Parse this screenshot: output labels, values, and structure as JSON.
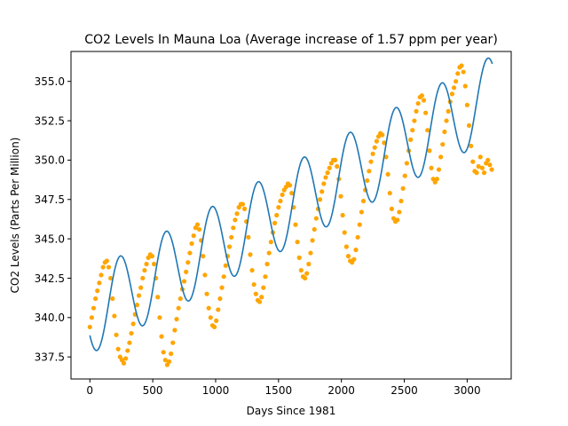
{
  "chart_data": {
    "type": "scatter",
    "title": "CO2 Levels In Mauna Loa (Average increase of 1.57 ppm per year)",
    "xlabel": "Days Since 1981",
    "ylabel": "CO2 Levels (Parts Per Million)",
    "xlim": [
      -150,
      3350
    ],
    "ylim": [
      336.1,
      356.9
    ],
    "xticks": [
      0,
      500,
      1000,
      1500,
      2000,
      2500,
      3000
    ],
    "xtick_labels": [
      "0",
      "500",
      "1000",
      "1500",
      "2000",
      "2500",
      "3000"
    ],
    "yticks": [
      337.5,
      340.0,
      342.5,
      345.0,
      347.5,
      350.0,
      352.5,
      355.0
    ],
    "ytick_labels": [
      "337.5",
      "340.0",
      "342.5",
      "345.0",
      "347.5",
      "350.0",
      "352.5",
      "355.0"
    ],
    "grid": false,
    "colors": {
      "points": "#ffa500",
      "fit": "#1f77b4"
    },
    "series": [
      {
        "kind": "scatter",
        "points": [
          [
            0,
            339.4
          ],
          [
            15,
            340.0
          ],
          [
            30,
            340.6
          ],
          [
            45,
            341.2
          ],
          [
            60,
            341.7
          ],
          [
            75,
            342.2
          ],
          [
            90,
            342.7
          ],
          [
            105,
            343.2
          ],
          [
            120,
            343.5
          ],
          [
            135,
            343.6
          ],
          [
            150,
            343.2
          ],
          [
            165,
            342.5
          ],
          [
            180,
            341.2
          ],
          [
            195,
            340.1
          ],
          [
            210,
            338.9
          ],
          [
            225,
            338.0
          ],
          [
            240,
            337.5
          ],
          [
            255,
            337.3
          ],
          [
            270,
            337.1
          ],
          [
            285,
            337.4
          ],
          [
            300,
            337.9
          ],
          [
            315,
            338.4
          ],
          [
            330,
            339.0
          ],
          [
            345,
            339.6
          ],
          [
            360,
            340.2
          ],
          [
            375,
            340.8
          ],
          [
            390,
            341.4
          ],
          [
            405,
            341.9
          ],
          [
            420,
            342.5
          ],
          [
            435,
            343.0
          ],
          [
            450,
            343.4
          ],
          [
            465,
            343.8
          ],
          [
            480,
            344.0
          ],
          [
            495,
            343.9
          ],
          [
            510,
            343.4
          ],
          [
            525,
            342.5
          ],
          [
            540,
            341.3
          ],
          [
            555,
            340.0
          ],
          [
            570,
            338.8
          ],
          [
            585,
            337.8
          ],
          [
            600,
            337.3
          ],
          [
            615,
            337.0
          ],
          [
            630,
            337.2
          ],
          [
            645,
            337.7
          ],
          [
            660,
            338.4
          ],
          [
            675,
            339.2
          ],
          [
            690,
            339.9
          ],
          [
            705,
            340.6
          ],
          [
            720,
            341.2
          ],
          [
            735,
            341.8
          ],
          [
            750,
            342.3
          ],
          [
            765,
            342.9
          ],
          [
            780,
            343.5
          ],
          [
            795,
            344.1
          ],
          [
            810,
            344.7
          ],
          [
            825,
            345.2
          ],
          [
            840,
            345.7
          ],
          [
            855,
            345.9
          ],
          [
            870,
            345.6
          ],
          [
            885,
            344.9
          ],
          [
            900,
            343.9
          ],
          [
            915,
            342.7
          ],
          [
            930,
            341.5
          ],
          [
            945,
            340.6
          ],
          [
            960,
            340.0
          ],
          [
            975,
            339.5
          ],
          [
            990,
            339.4
          ],
          [
            1005,
            339.8
          ],
          [
            1020,
            340.5
          ],
          [
            1035,
            341.2
          ],
          [
            1050,
            341.9
          ],
          [
            1065,
            342.6
          ],
          [
            1080,
            343.3
          ],
          [
            1095,
            343.9
          ],
          [
            1110,
            344.5
          ],
          [
            1125,
            345.1
          ],
          [
            1140,
            345.7
          ],
          [
            1155,
            346.2
          ],
          [
            1170,
            346.6
          ],
          [
            1185,
            347.0
          ],
          [
            1200,
            347.2
          ],
          [
            1215,
            347.2
          ],
          [
            1230,
            346.9
          ],
          [
            1245,
            346.1
          ],
          [
            1260,
            345.1
          ],
          [
            1275,
            344.0
          ],
          [
            1290,
            343.0
          ],
          [
            1305,
            342.1
          ],
          [
            1320,
            341.5
          ],
          [
            1335,
            341.1
          ],
          [
            1350,
            341.0
          ],
          [
            1365,
            341.3
          ],
          [
            1380,
            341.9
          ],
          [
            1395,
            342.6
          ],
          [
            1410,
            343.4
          ],
          [
            1425,
            344.1
          ],
          [
            1440,
            344.8
          ],
          [
            1455,
            345.4
          ],
          [
            1470,
            346.0
          ],
          [
            1485,
            346.5
          ],
          [
            1500,
            347.0
          ],
          [
            1515,
            347.4
          ],
          [
            1530,
            347.8
          ],
          [
            1545,
            348.1
          ],
          [
            1560,
            348.3
          ],
          [
            1575,
            348.5
          ],
          [
            1590,
            348.4
          ],
          [
            1605,
            347.9
          ],
          [
            1620,
            347.0
          ],
          [
            1635,
            345.9
          ],
          [
            1650,
            344.8
          ],
          [
            1665,
            343.8
          ],
          [
            1680,
            343.0
          ],
          [
            1695,
            342.6
          ],
          [
            1710,
            342.5
          ],
          [
            1725,
            342.8
          ],
          [
            1740,
            343.4
          ],
          [
            1755,
            344.1
          ],
          [
            1770,
            344.9
          ],
          [
            1785,
            345.6
          ],
          [
            1800,
            346.3
          ],
          [
            1815,
            346.9
          ],
          [
            1830,
            347.5
          ],
          [
            1845,
            348.0
          ],
          [
            1860,
            348.5
          ],
          [
            1875,
            348.9
          ],
          [
            1890,
            349.2
          ],
          [
            1905,
            349.5
          ],
          [
            1920,
            349.8
          ],
          [
            1935,
            350.0
          ],
          [
            1950,
            350.0
          ],
          [
            1965,
            349.6
          ],
          [
            1980,
            348.8
          ],
          [
            1995,
            347.7
          ],
          [
            2010,
            346.5
          ],
          [
            2025,
            345.4
          ],
          [
            2040,
            344.5
          ],
          [
            2055,
            343.9
          ],
          [
            2070,
            343.6
          ],
          [
            2085,
            343.5
          ],
          [
            2100,
            343.7
          ],
          [
            2115,
            344.3
          ],
          [
            2130,
            345.1
          ],
          [
            2145,
            345.9
          ],
          [
            2160,
            346.7
          ],
          [
            2175,
            347.4
          ],
          [
            2190,
            348.1
          ],
          [
            2205,
            348.7
          ],
          [
            2220,
            349.3
          ],
          [
            2235,
            349.9
          ],
          [
            2250,
            350.4
          ],
          [
            2265,
            350.8
          ],
          [
            2280,
            351.2
          ],
          [
            2295,
            351.5
          ],
          [
            2310,
            351.7
          ],
          [
            2325,
            351.6
          ],
          [
            2340,
            351.1
          ],
          [
            2355,
            350.2
          ],
          [
            2370,
            349.1
          ],
          [
            2385,
            347.9
          ],
          [
            2400,
            346.9
          ],
          [
            2415,
            346.3
          ],
          [
            2430,
            346.1
          ],
          [
            2445,
            346.2
          ],
          [
            2460,
            346.7
          ],
          [
            2475,
            347.4
          ],
          [
            2490,
            348.2
          ],
          [
            2505,
            349.0
          ],
          [
            2520,
            349.8
          ],
          [
            2535,
            350.6
          ],
          [
            2550,
            351.3
          ],
          [
            2565,
            351.9
          ],
          [
            2580,
            352.5
          ],
          [
            2595,
            353.1
          ],
          [
            2610,
            353.6
          ],
          [
            2625,
            354.0
          ],
          [
            2640,
            354.1
          ],
          [
            2655,
            353.8
          ],
          [
            2670,
            353.0
          ],
          [
            2685,
            351.9
          ],
          [
            2700,
            350.6
          ],
          [
            2715,
            349.5
          ],
          [
            2730,
            348.8
          ],
          [
            2745,
            348.6
          ],
          [
            2760,
            348.8
          ],
          [
            2775,
            349.4
          ],
          [
            2790,
            350.2
          ],
          [
            2805,
            351.0
          ],
          [
            2820,
            351.8
          ],
          [
            2835,
            352.5
          ],
          [
            2850,
            353.1
          ],
          [
            2865,
            353.7
          ],
          [
            2880,
            354.2
          ],
          [
            2895,
            354.6
          ],
          [
            2910,
            355.0
          ],
          [
            2925,
            355.5
          ],
          [
            2940,
            355.9
          ],
          [
            2955,
            356.0
          ],
          [
            2970,
            355.6
          ],
          [
            2985,
            354.7
          ],
          [
            3000,
            353.5
          ],
          [
            3015,
            352.2
          ],
          [
            3030,
            350.9
          ],
          [
            3045,
            349.9
          ],
          [
            3060,
            349.3
          ],
          [
            3075,
            349.2
          ],
          [
            3090,
            349.6
          ],
          [
            3105,
            350.2
          ],
          [
            3120,
            349.5
          ],
          [
            3135,
            349.2
          ],
          [
            3150,
            349.8
          ],
          [
            3165,
            350.0
          ],
          [
            3180,
            349.7
          ],
          [
            3195,
            349.4
          ]
        ]
      },
      {
        "kind": "line",
        "model": "fitted sinusoid plus linear trend",
        "params": {
          "offset": 340.27,
          "slope": 0.0043,
          "amplitude": 2.6,
          "period": 365.25,
          "phase": -2.57
        },
        "x_range": [
          0,
          3200
        ]
      }
    ]
  }
}
